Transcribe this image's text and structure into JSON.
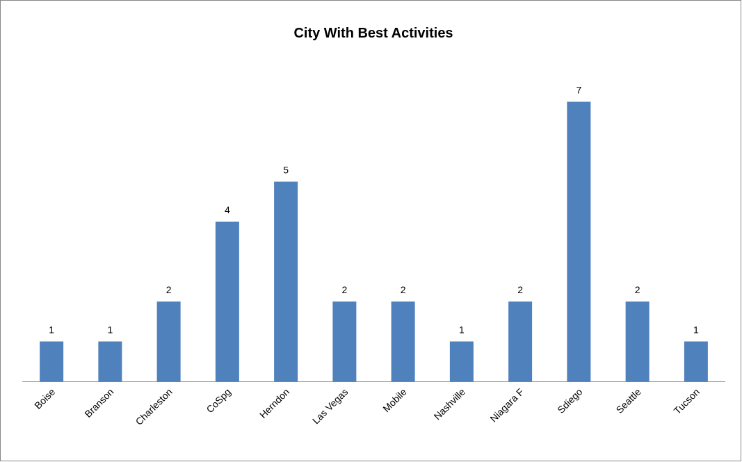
{
  "chart_data": {
    "type": "bar",
    "title": "City With Best Activities",
    "categories": [
      "Boise",
      "Branson",
      "Charleston",
      "CoSpg",
      "Herndon",
      "Las Vegas",
      "Mobile",
      "Nashville",
      "Niagara F",
      "Sdiego",
      "Seattle",
      "Tucson"
    ],
    "values": [
      1,
      1,
      2,
      4,
      5,
      2,
      2,
      1,
      2,
      7,
      2,
      1
    ],
    "color": "#4f81bd",
    "ylim": [
      0,
      8
    ]
  }
}
